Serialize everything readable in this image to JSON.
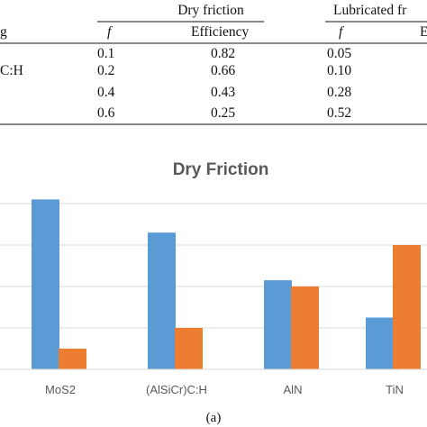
{
  "table": {
    "group_headers": [
      "Dry friction",
      "Lubricated fr"
    ],
    "sub_headers": [
      "g",
      "f",
      "Efficiency",
      "f",
      "E"
    ],
    "first_col_partial": [
      "",
      "C:H",
      "",
      ""
    ],
    "rows": [
      [
        "0.1",
        "0.82",
        "0.05"
      ],
      [
        "0.2",
        "0.66",
        "0.10"
      ],
      [
        "0.4",
        "0.43",
        "0.28"
      ],
      [
        "0.6",
        "0.25",
        "0.52"
      ]
    ]
  },
  "chart_data": {
    "type": "bar",
    "title": "Dry Friction",
    "categories": [
      "MoS2",
      "(AlSiCr)C:H",
      "AlN",
      "TiN"
    ],
    "series": [
      {
        "values": [
          0.82,
          0.66,
          0.43,
          0.25
        ],
        "color": "#5b9bd5"
      },
      {
        "values": [
          0.1,
          0.2,
          0.4,
          0.6
        ],
        "color": "#ed7d31"
      }
    ],
    "ylim": [
      0,
      0.8
    ],
    "grid": true
  },
  "caption": "(a)"
}
